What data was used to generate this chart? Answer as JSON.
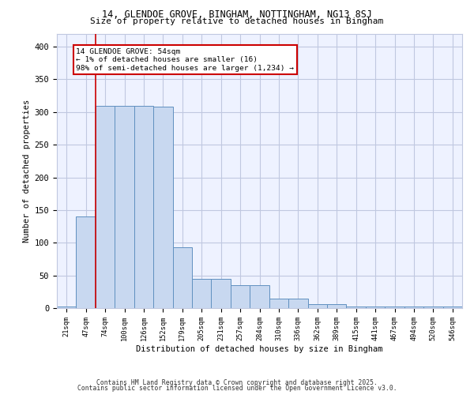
{
  "title1": "14, GLENDOE GROVE, BINGHAM, NOTTINGHAM, NG13 8SJ",
  "title2": "Size of property relative to detached houses in Bingham",
  "xlabel": "Distribution of detached houses by size in Bingham",
  "ylabel": "Number of detached properties",
  "categories": [
    "21sqm",
    "47sqm",
    "74sqm",
    "100sqm",
    "126sqm",
    "152sqm",
    "179sqm",
    "205sqm",
    "231sqm",
    "257sqm",
    "284sqm",
    "310sqm",
    "336sqm",
    "362sqm",
    "389sqm",
    "415sqm",
    "441sqm",
    "467sqm",
    "494sqm",
    "520sqm",
    "546sqm"
  ],
  "values": [
    3,
    140,
    310,
    310,
    310,
    308,
    93,
    45,
    45,
    35,
    35,
    15,
    15,
    6,
    6,
    2,
    2,
    2,
    2,
    2,
    3
  ],
  "bar_color": "#c8d8f0",
  "bar_edge_color": "#6090c0",
  "red_line_x": 1.5,
  "annotation_title": "14 GLENDOE GROVE: 54sqm",
  "annotation_line1": "← 1% of detached houses are smaller (16)",
  "annotation_line2": "98% of semi-detached houses are larger (1,234) →",
  "annotation_box_color": "#ffffff",
  "annotation_box_edge": "#cc0000",
  "footer1": "Contains HM Land Registry data © Crown copyright and database right 2025.",
  "footer2": "Contains public sector information licensed under the Open Government Licence v3.0.",
  "bg_color": "#eef2ff",
  "grid_color": "#c0c8e0",
  "ylim": [
    0,
    420
  ],
  "yticks": [
    0,
    50,
    100,
    150,
    200,
    250,
    300,
    350,
    400
  ]
}
